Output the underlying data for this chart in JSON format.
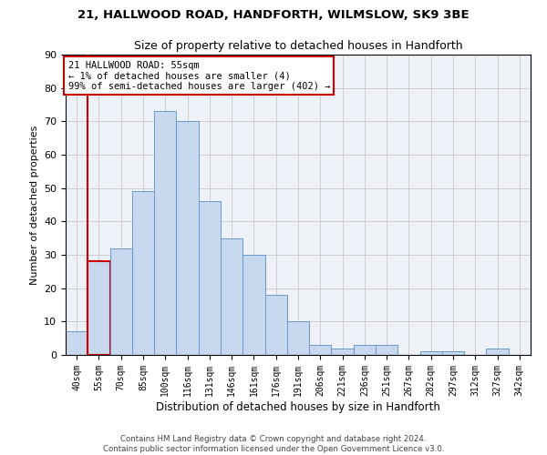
{
  "title1": "21, HALLWOOD ROAD, HANDFORTH, WILMSLOW, SK9 3BE",
  "title2": "Size of property relative to detached houses in Handforth",
  "xlabel": "Distribution of detached houses by size in Handforth",
  "ylabel": "Number of detached properties",
  "categories": [
    "40sqm",
    "55sqm",
    "70sqm",
    "85sqm",
    "100sqm",
    "116sqm",
    "131sqm",
    "146sqm",
    "161sqm",
    "176sqm",
    "191sqm",
    "206sqm",
    "221sqm",
    "236sqm",
    "251sqm",
    "267sqm",
    "282sqm",
    "297sqm",
    "312sqm",
    "327sqm",
    "342sqm"
  ],
  "values": [
    7,
    28,
    32,
    49,
    73,
    70,
    46,
    35,
    30,
    18,
    10,
    3,
    2,
    3,
    3,
    0,
    1,
    1,
    0,
    2,
    0
  ],
  "bar_color": "#c8d8ee",
  "bar_edge_color": "#6699cc",
  "highlight_bar_index": 1,
  "highlight_edge_color": "#cc0000",
  "vline_color": "#cc0000",
  "annotation_title": "21 HALLWOOD ROAD: 55sqm",
  "annotation_line1": "← 1% of detached houses are smaller (4)",
  "annotation_line2": "99% of semi-detached houses are larger (402) →",
  "annotation_box_color": "#ffffff",
  "annotation_box_edge": "#cc0000",
  "ylim": [
    0,
    90
  ],
  "yticks": [
    0,
    10,
    20,
    30,
    40,
    50,
    60,
    70,
    80,
    90
  ],
  "footer1": "Contains HM Land Registry data © Crown copyright and database right 2024.",
  "footer2": "Contains public sector information licensed under the Open Government Licence v3.0.",
  "bg_color": "#ffffff",
  "plot_bg_color": "#eef2f8",
  "grid_color": "#cccccc"
}
